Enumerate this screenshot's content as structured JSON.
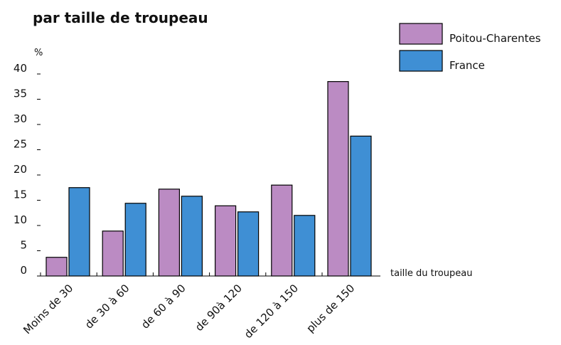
{
  "chart_data": {
    "type": "bar",
    "title": "par taille de troupeau",
    "y_unit_label": "%",
    "x_axis_label": "taille du troupeau",
    "categories": [
      "Moins de 30",
      "de 30 à 60",
      "de 60 à 90",
      "de 90à 120",
      "de 120 à 150",
      "plus de 150"
    ],
    "series": [
      {
        "name": "Poitou-Charentes",
        "color": "#bb8bc3",
        "values": [
          3.7,
          8.9,
          17.2,
          13.9,
          18.0,
          38.5
        ]
      },
      {
        "name": "France",
        "color": "#3f8fd4",
        "values": [
          17.5,
          14.4,
          15.8,
          12.7,
          12.0,
          27.7
        ]
      }
    ],
    "ylim": [
      0,
      40
    ],
    "yticks": [
      0,
      5,
      10,
      15,
      20,
      25,
      30,
      35,
      40
    ]
  }
}
